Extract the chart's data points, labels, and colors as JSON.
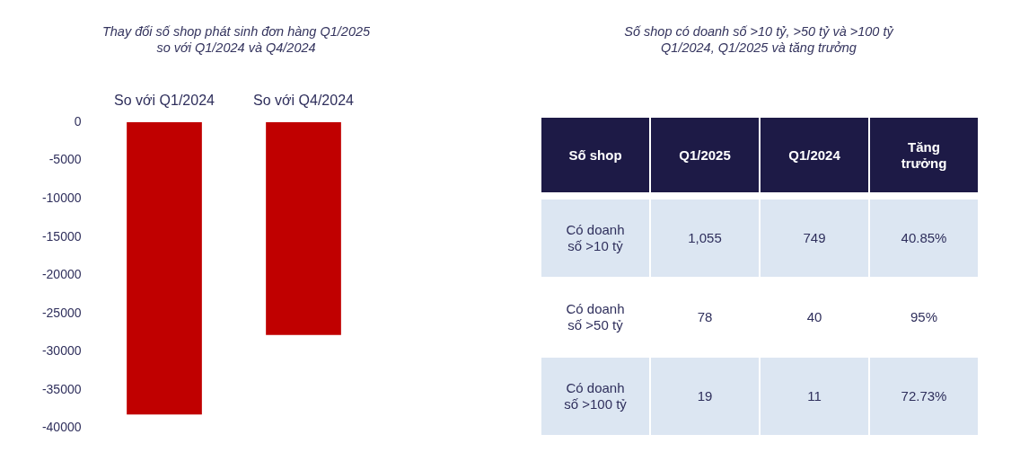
{
  "chart_data": [
    {
      "type": "bar",
      "title": "Thay đổi số shop phát sinh đơn hàng Q1/2025 so với Q1/2024 và Q4/2024",
      "categories": [
        "So với Q1/2024",
        "So với Q4/2024"
      ],
      "values": [
        -38200,
        -27800
      ],
      "color": "#c00000",
      "ylim": [
        -40000,
        0
      ],
      "yticks": [
        0,
        -5000,
        -10000,
        -15000,
        -20000,
        -25000,
        -30000,
        -35000,
        -40000
      ],
      "grid": false
    },
    {
      "type": "other",
      "title": "Số shop có doanh số >10 tỷ, >50 tỷ và >100 tỷ Q1/2024, Q1/2025 và tăng trưởng",
      "ylabel": "Số shop",
      "categories": [
        "Có doanh số >10 tỷ",
        "Có doanh số >50 tỷ",
        "Có doanh số >100 tỷ"
      ],
      "series": [
        {
          "name": "Q1/2025",
          "colors": [
            "#dce6f2",
            "#ffffff",
            "#dce6f2"
          ],
          "values": [
            1055,
            78,
            19
          ],
          "value_labels": [
            "1,055",
            "78",
            "19"
          ]
        },
        {
          "name": "Q1/2024",
          "colors": [
            "#dce6f2",
            "#ffffff",
            "#dce6f2"
          ],
          "values": [
            749,
            40,
            11
          ],
          "value_labels": [
            "749",
            "40",
            "11"
          ]
        },
        {
          "name": "Tăng trưởng",
          "colors": [
            "#dce6f2",
            "#ffffff",
            "#dce6f2"
          ],
          "values": [
            40.85,
            95,
            72.73
          ],
          "value_labels": [
            "40.85%",
            "95%",
            "72.73%"
          ]
        }
      ]
    }
  ]
}
